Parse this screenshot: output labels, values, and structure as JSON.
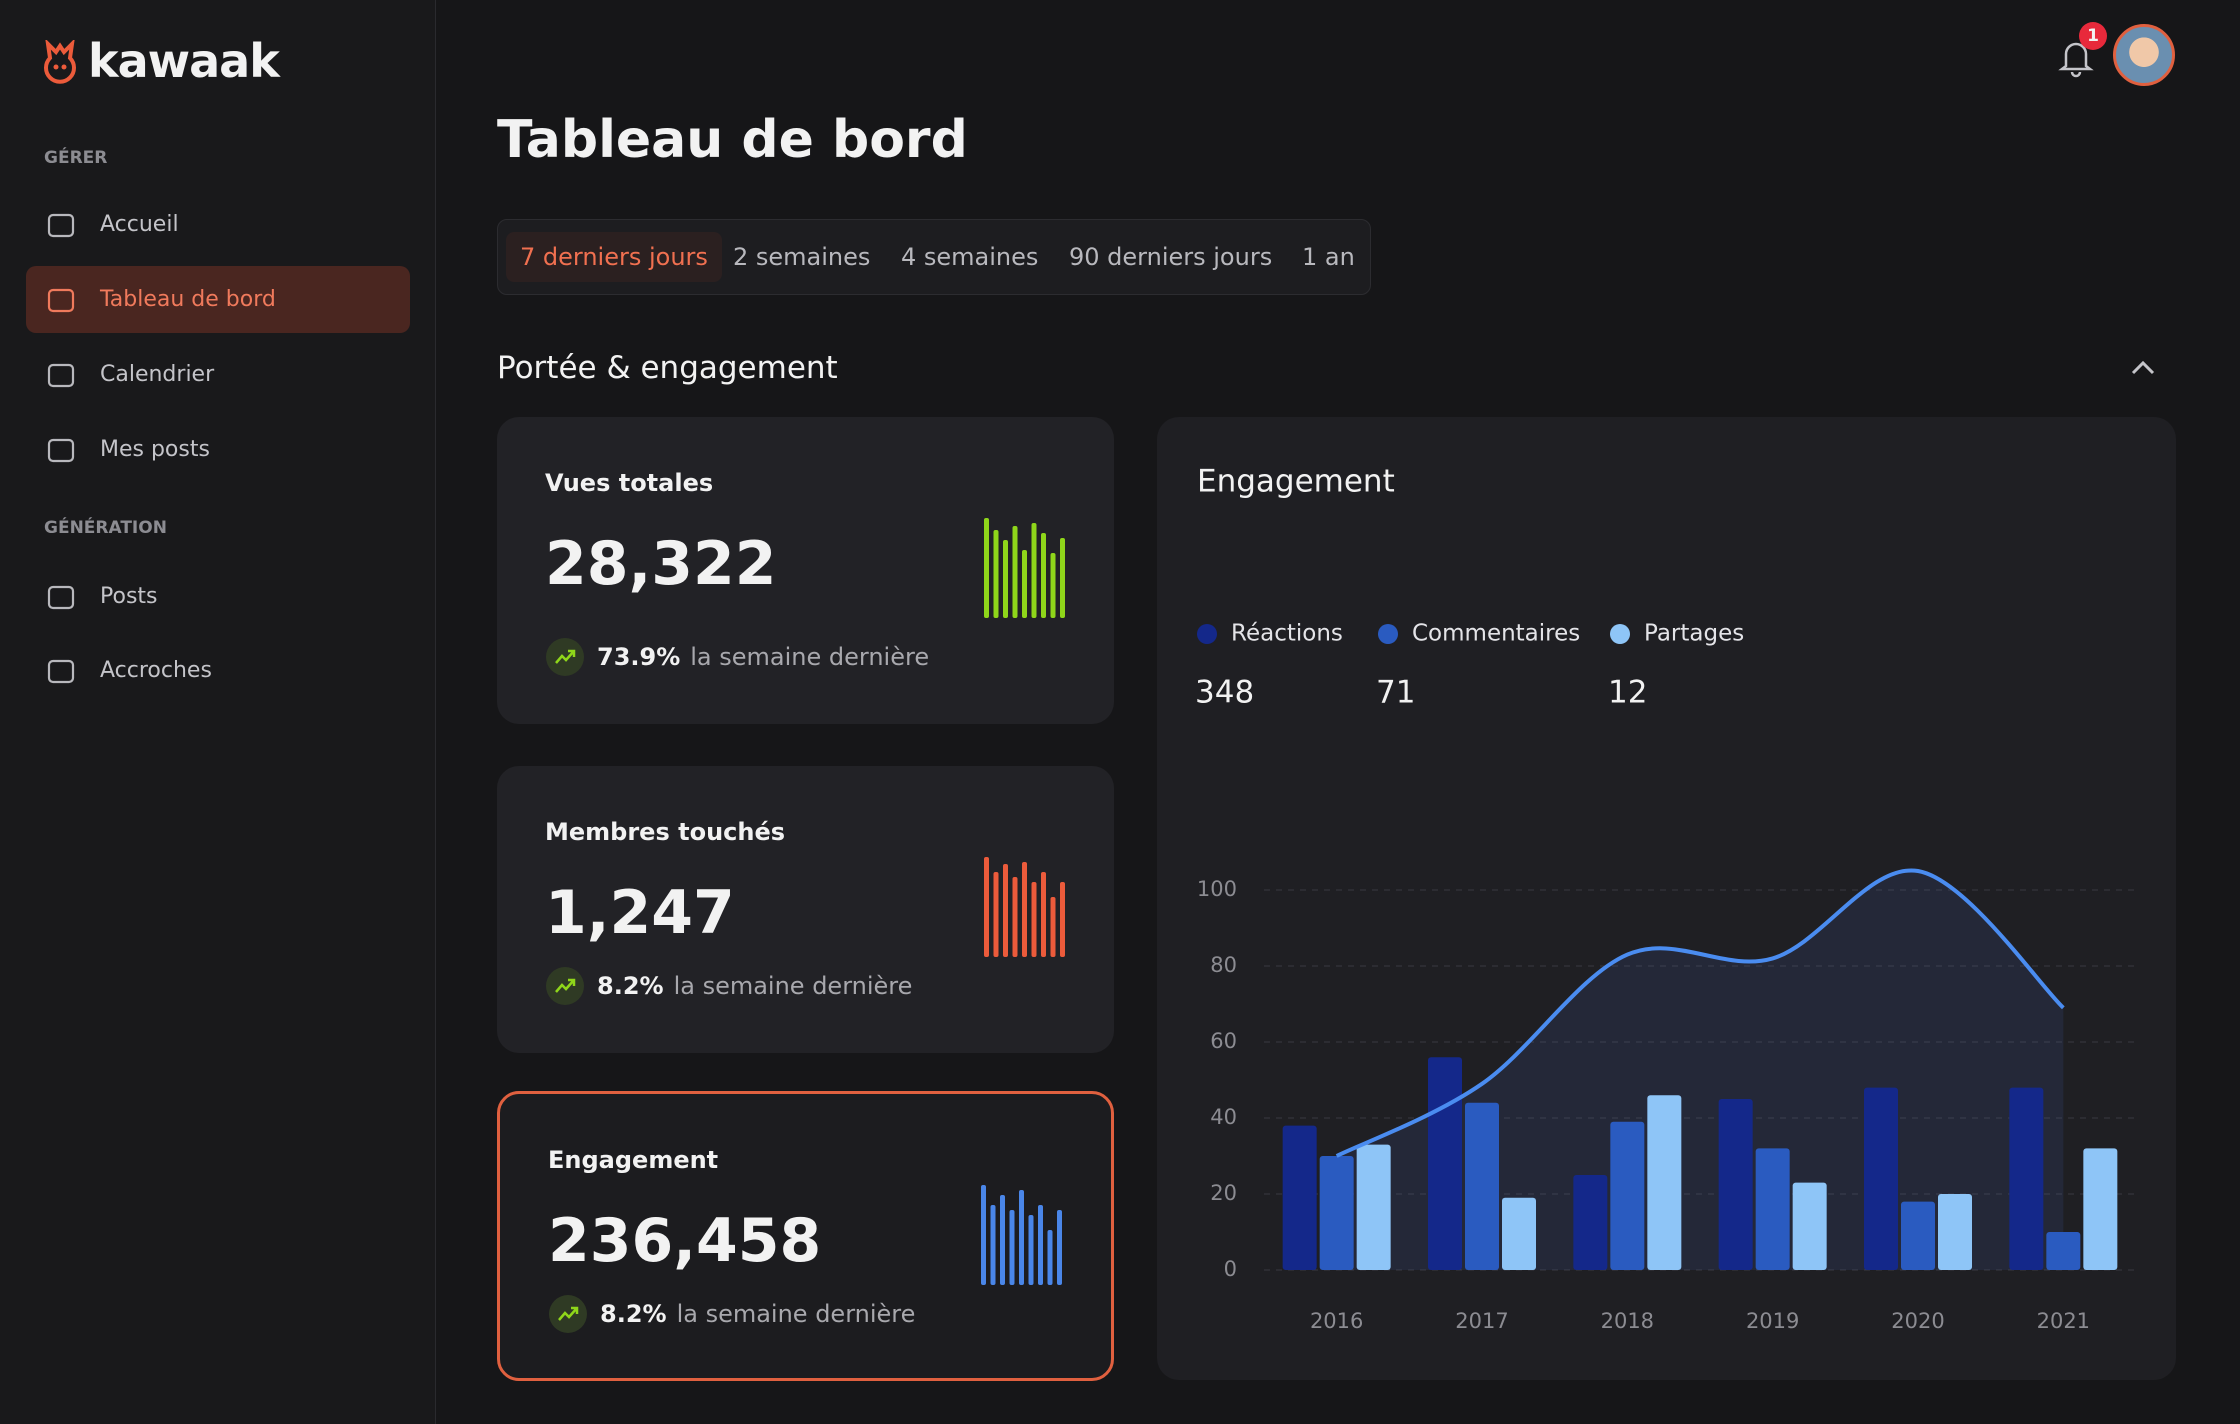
{
  "sidebar": {
    "logo": "kawaak",
    "sections": [
      {
        "title": "GÉRER",
        "items": [
          "Accueil",
          "Tableau de bord",
          "Calendrier",
          "Mes posts"
        ]
      },
      {
        "title": "GÉNÉRATION",
        "items": [
          "Posts",
          "Accroches"
        ]
      }
    ]
  },
  "topbar": {
    "notifications": 1
  },
  "header": {
    "title": "Tableau de bord",
    "tabs": [
      "7 derniers jours",
      "2 semaines",
      "4 semaines",
      "90 derniers jours",
      "1 an"
    ]
  },
  "section_title": "Portée & engagement",
  "cards": [
    {
      "title": "Vues totales",
      "value": "28,322",
      "change": "73.9%",
      "change_text": "la semaine dernière",
      "spark": {
        "color": "#8fd61a",
        "values": [
          100,
          88,
          78,
          92,
          68,
          95,
          85,
          65,
          80
        ]
      }
    },
    {
      "title": "Membres touchés",
      "value": "1,247",
      "change": "8.2%",
      "change_text": "la semaine dernière",
      "spark": {
        "color": "#ec5b3b",
        "values": [
          100,
          85,
          93,
          80,
          95,
          75,
          85,
          60,
          75
        ]
      }
    },
    {
      "title": "Engagement",
      "value": "236,458",
      "change": "8.2%",
      "change_text": "la semaine dernière",
      "spark": {
        "color": "#4a86e8",
        "values": [
          100,
          80,
          90,
          75,
          95,
          70,
          80,
          55,
          75
        ]
      }
    }
  ],
  "chart_data": {
    "type": "bar",
    "title": "Engagement",
    "categories": [
      "2016",
      "2017",
      "2018",
      "2019",
      "2020",
      "2021"
    ],
    "series": [
      {
        "name": "Réactions",
        "color": "#14288a",
        "total": 348,
        "values": [
          38,
          56,
          25,
          45,
          48,
          48
        ]
      },
      {
        "name": "Commentaires",
        "color": "#2a5bc0",
        "total": 71,
        "values": [
          30,
          44,
          39,
          32,
          18,
          10
        ]
      },
      {
        "name": "Partages",
        "color": "#8ec5f7",
        "total": 12,
        "values": [
          33,
          19,
          46,
          23,
          20,
          32
        ]
      }
    ],
    "line": {
      "color": "#4a8cf0",
      "values": [
        30,
        49,
        83,
        82,
        105,
        69
      ]
    },
    "ylim": [
      0,
      110
    ],
    "yticks": [
      0,
      20,
      40,
      60,
      80,
      100
    ],
    "grid": true
  }
}
